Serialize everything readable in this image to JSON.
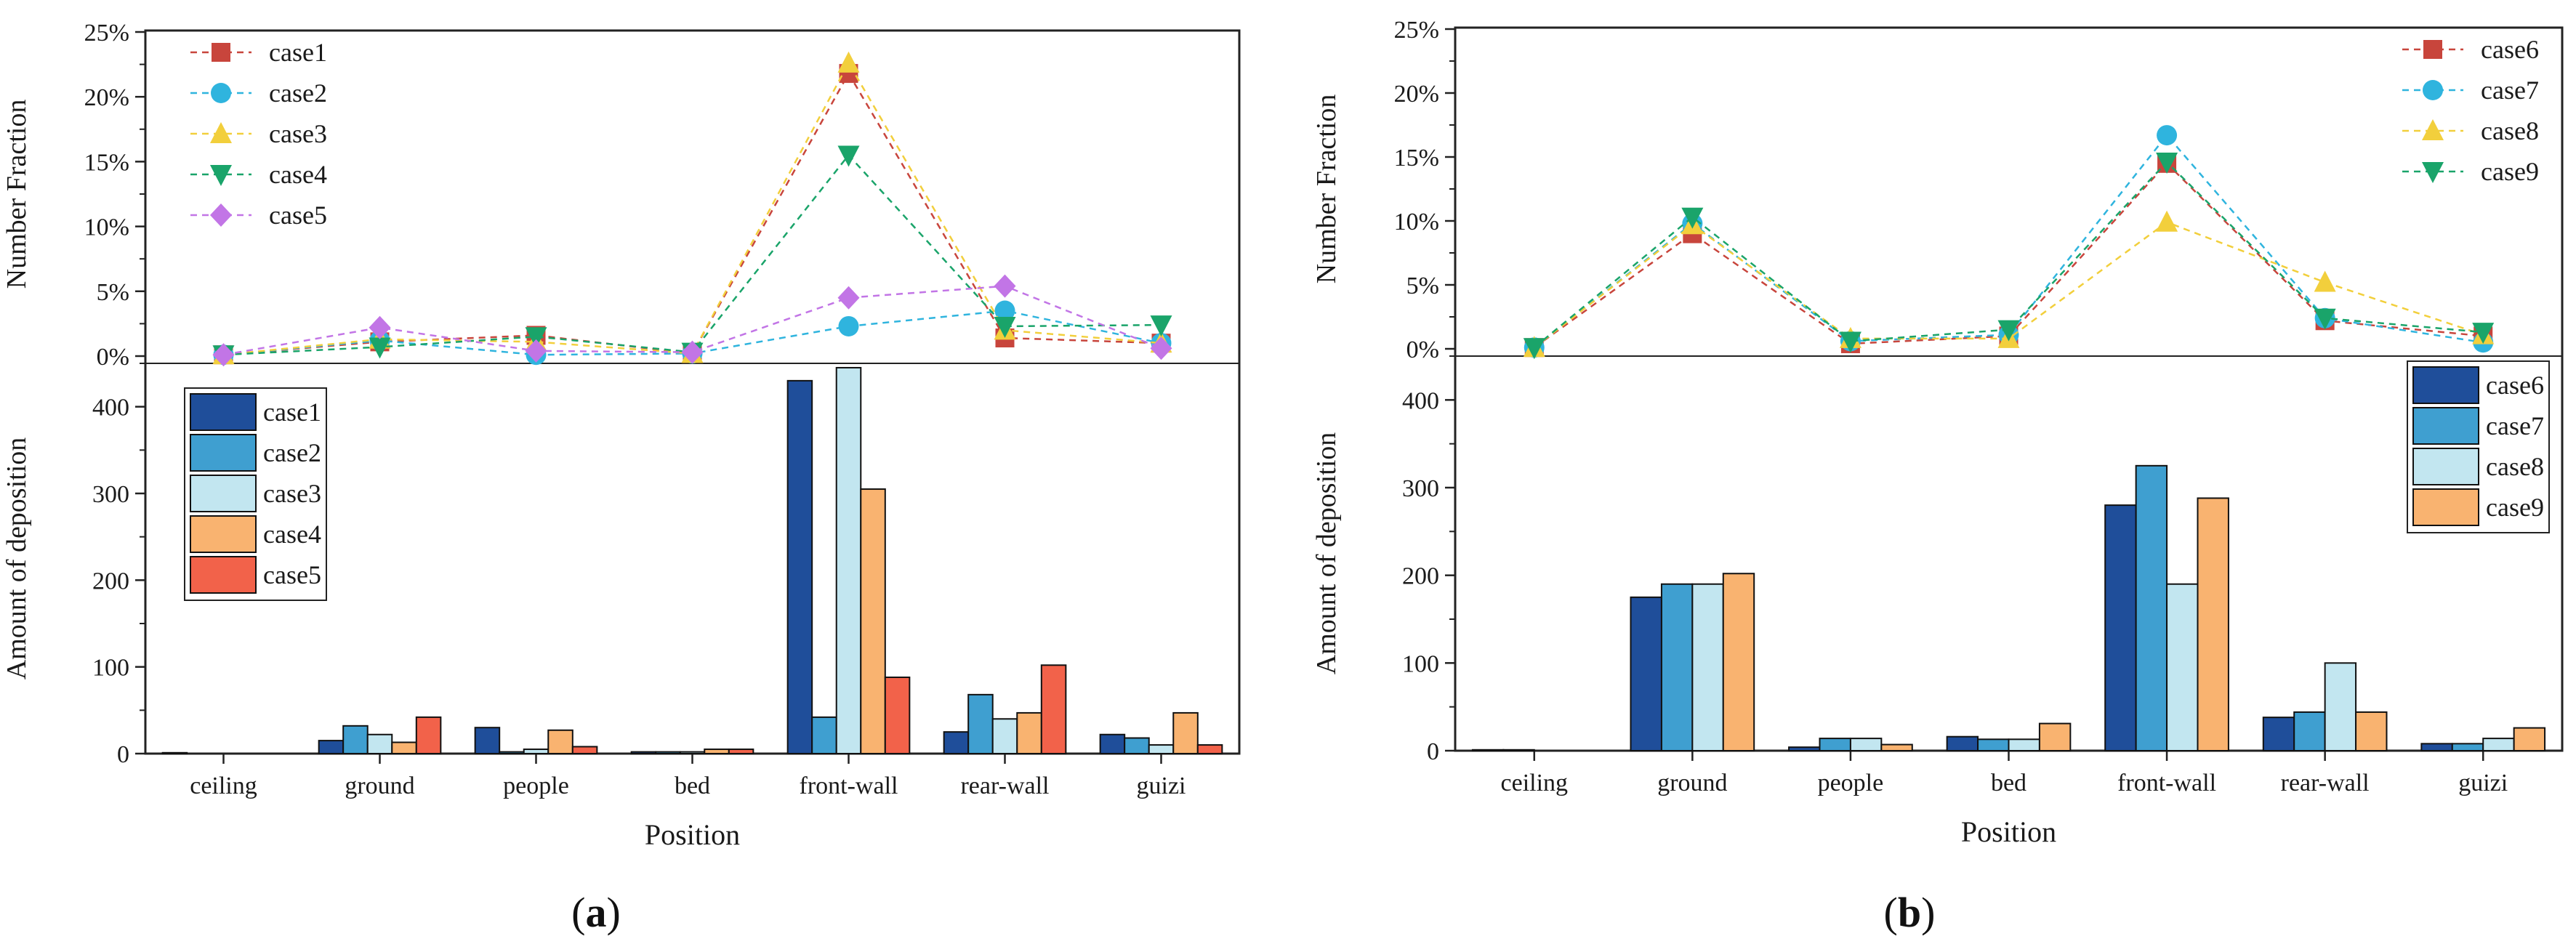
{
  "panels": [
    {
      "id": "a",
      "label_prefix": "(",
      "label_letter": "a",
      "label_suffix": ")",
      "categories": [
        "ceiling",
        "ground",
        "people",
        "bed",
        "front-wall",
        "rear-wall",
        "guizi"
      ],
      "xlabel": "Position",
      "chart_data": [
        {
          "type": "line",
          "ylabel": "Number Fraction",
          "ylim": [
            0,
            25
          ],
          "yticks": [
            "0%",
            "5%",
            "10%",
            "15%",
            "20%",
            "25%"
          ],
          "legend_position": "top-left",
          "series": [
            {
              "name": "case1",
              "values": [
                0.1,
                1.1,
                1.6,
                0.2,
                21.8,
                1.4,
                1.0
              ],
              "color": "#c8453c",
              "marker": "square"
            },
            {
              "name": "case2",
              "values": [
                0.1,
                1.2,
                0.1,
                0.2,
                2.3,
                3.5,
                1.0
              ],
              "color": "#2fb4de",
              "marker": "circle"
            },
            {
              "name": "case3",
              "values": [
                0.1,
                1.3,
                1.1,
                0.2,
                22.6,
                2.0,
                1.0
              ],
              "color": "#f2cf3c",
              "marker": "triangle-up"
            },
            {
              "name": "case4",
              "values": [
                0.1,
                0.7,
                1.5,
                0.3,
                15.5,
                2.3,
                2.4
              ],
              "color": "#1aa46a",
              "marker": "triangle-down"
            },
            {
              "name": "case5",
              "values": [
                0.1,
                2.2,
                0.4,
                0.3,
                4.5,
                5.4,
                0.6
              ],
              "color": "#c275e6",
              "marker": "diamond"
            }
          ]
        },
        {
          "type": "bar",
          "ylabel": "Amount of deposition",
          "ylim": [
            0,
            450
          ],
          "yticks": [
            "0",
            "100",
            "200",
            "300",
            "400"
          ],
          "legend_position": "top-left",
          "series": [
            {
              "name": "case1",
              "values": [
                1,
                15,
                30,
                2,
                430,
                25,
                22
              ],
              "color": "#1f4e9a"
            },
            {
              "name": "case2",
              "values": [
                0,
                32,
                2,
                2,
                42,
                68,
                18
              ],
              "color": "#3f9fd0"
            },
            {
              "name": "case3",
              "values": [
                0,
                22,
                5,
                2,
                445,
                40,
                10
              ],
              "color": "#c2e6f0"
            },
            {
              "name": "case4",
              "values": [
                0,
                13,
                27,
                5,
                305,
                47,
                47
              ],
              "color": "#f9b370"
            },
            {
              "name": "case5",
              "values": [
                0,
                42,
                8,
                5,
                88,
                102,
                10
              ],
              "color": "#f2624a"
            }
          ]
        }
      ]
    },
    {
      "id": "b",
      "label_prefix": "(",
      "label_letter": "b",
      "label_suffix": ")",
      "categories": [
        "ceiling",
        "ground",
        "people",
        "bed",
        "front-wall",
        "rear-wall",
        "guizi"
      ],
      "xlabel": "Position",
      "chart_data": [
        {
          "type": "line",
          "ylabel": "Number Fraction",
          "ylim": [
            0,
            25
          ],
          "yticks": [
            "0%",
            "5%",
            "10%",
            "15%",
            "20%",
            "25%"
          ],
          "legend_position": "top-right",
          "series": [
            {
              "name": "case6",
              "values": [
                0.1,
                9.0,
                0.4,
                1.0,
                14.5,
                2.2,
                1.0
              ],
              "color": "#c8453c",
              "marker": "square"
            },
            {
              "name": "case7",
              "values": [
                0.1,
                9.8,
                0.6,
                1.1,
                16.7,
                2.4,
                0.5
              ],
              "color": "#2fb4de",
              "marker": "circle"
            },
            {
              "name": "case8",
              "values": [
                0.1,
                9.7,
                0.8,
                0.8,
                9.9,
                5.2,
                1.1
              ],
              "color": "#f2cf3c",
              "marker": "triangle-up"
            },
            {
              "name": "case9",
              "values": [
                0.1,
                10.3,
                0.6,
                1.5,
                14.6,
                2.4,
                1.3
              ],
              "color": "#1aa46a",
              "marker": "triangle-down"
            }
          ]
        },
        {
          "type": "bar",
          "ylabel": "Amount of deposition",
          "ylim": [
            0,
            450
          ],
          "yticks": [
            "0",
            "100",
            "200",
            "300",
            "400"
          ],
          "legend_position": "top-right",
          "series": [
            {
              "name": "case6",
              "values": [
                1,
                175,
                4,
                16,
                280,
                38,
                8
              ],
              "color": "#1f4e9a"
            },
            {
              "name": "case7",
              "values": [
                1,
                190,
                14,
                13,
                325,
                44,
                8
              ],
              "color": "#3f9fd0"
            },
            {
              "name": "case8",
              "values": [
                0,
                190,
                14,
                13,
                190,
                100,
                14
              ],
              "color": "#c2e6f0"
            },
            {
              "name": "case9",
              "values": [
                0,
                202,
                7,
                31,
                288,
                44,
                26
              ],
              "color": "#f9b370"
            }
          ]
        }
      ]
    }
  ]
}
